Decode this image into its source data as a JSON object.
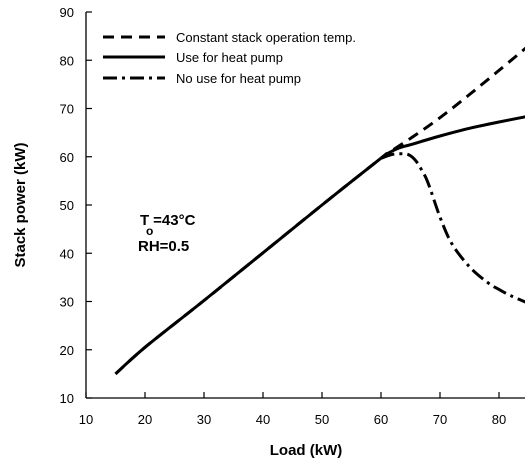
{
  "chart_data": {
    "type": "line",
    "xlabel": "Load (kW)",
    "ylabel": "Stack power (kW)",
    "xlim": [
      10,
      85
    ],
    "ylim": [
      10,
      90
    ],
    "xticks": [
      10,
      20,
      30,
      40,
      50,
      60,
      70,
      80
    ],
    "yticks": [
      10,
      20,
      30,
      40,
      50,
      60,
      70,
      80,
      90
    ],
    "legend_position": "top-left",
    "grid": false,
    "series": [
      {
        "name": "Constant stack operation temp.",
        "style": "dashed",
        "x": [
          15,
          20,
          30,
          40,
          50,
          60,
          61,
          65,
          70,
          75,
          80,
          85
        ],
        "y": [
          15,
          20.5,
          30.2,
          40.1,
          50,
          59.7,
          60.6,
          63.8,
          68.1,
          72.9,
          77.9,
          83
        ]
      },
      {
        "name": "Use for heat pump",
        "style": "solid",
        "x": [
          15,
          20,
          30,
          40,
          50,
          60,
          61,
          63,
          65,
          70,
          75,
          80,
          85
        ],
        "y": [
          15,
          20.5,
          30.2,
          40.1,
          50,
          59.7,
          60.6,
          61.8,
          62.5,
          64.3,
          65.9,
          67.2,
          68.4
        ]
      },
      {
        "name": "No use for heat pump",
        "style": "dash-dot",
        "x": [
          60,
          62,
          64,
          65,
          66,
          67,
          68,
          70,
          72,
          75,
          78,
          80,
          82,
          85
        ],
        "y": [
          59.7,
          60.5,
          60.6,
          60.2,
          59,
          57,
          54.5,
          47.5,
          42,
          37.2,
          34,
          32.5,
          31.2,
          29.6
        ]
      }
    ],
    "annotations": [
      {
        "main": "T",
        "subscript": "o",
        "rest": "=43°C"
      },
      {
        "main": "RH=0.5"
      }
    ]
  }
}
